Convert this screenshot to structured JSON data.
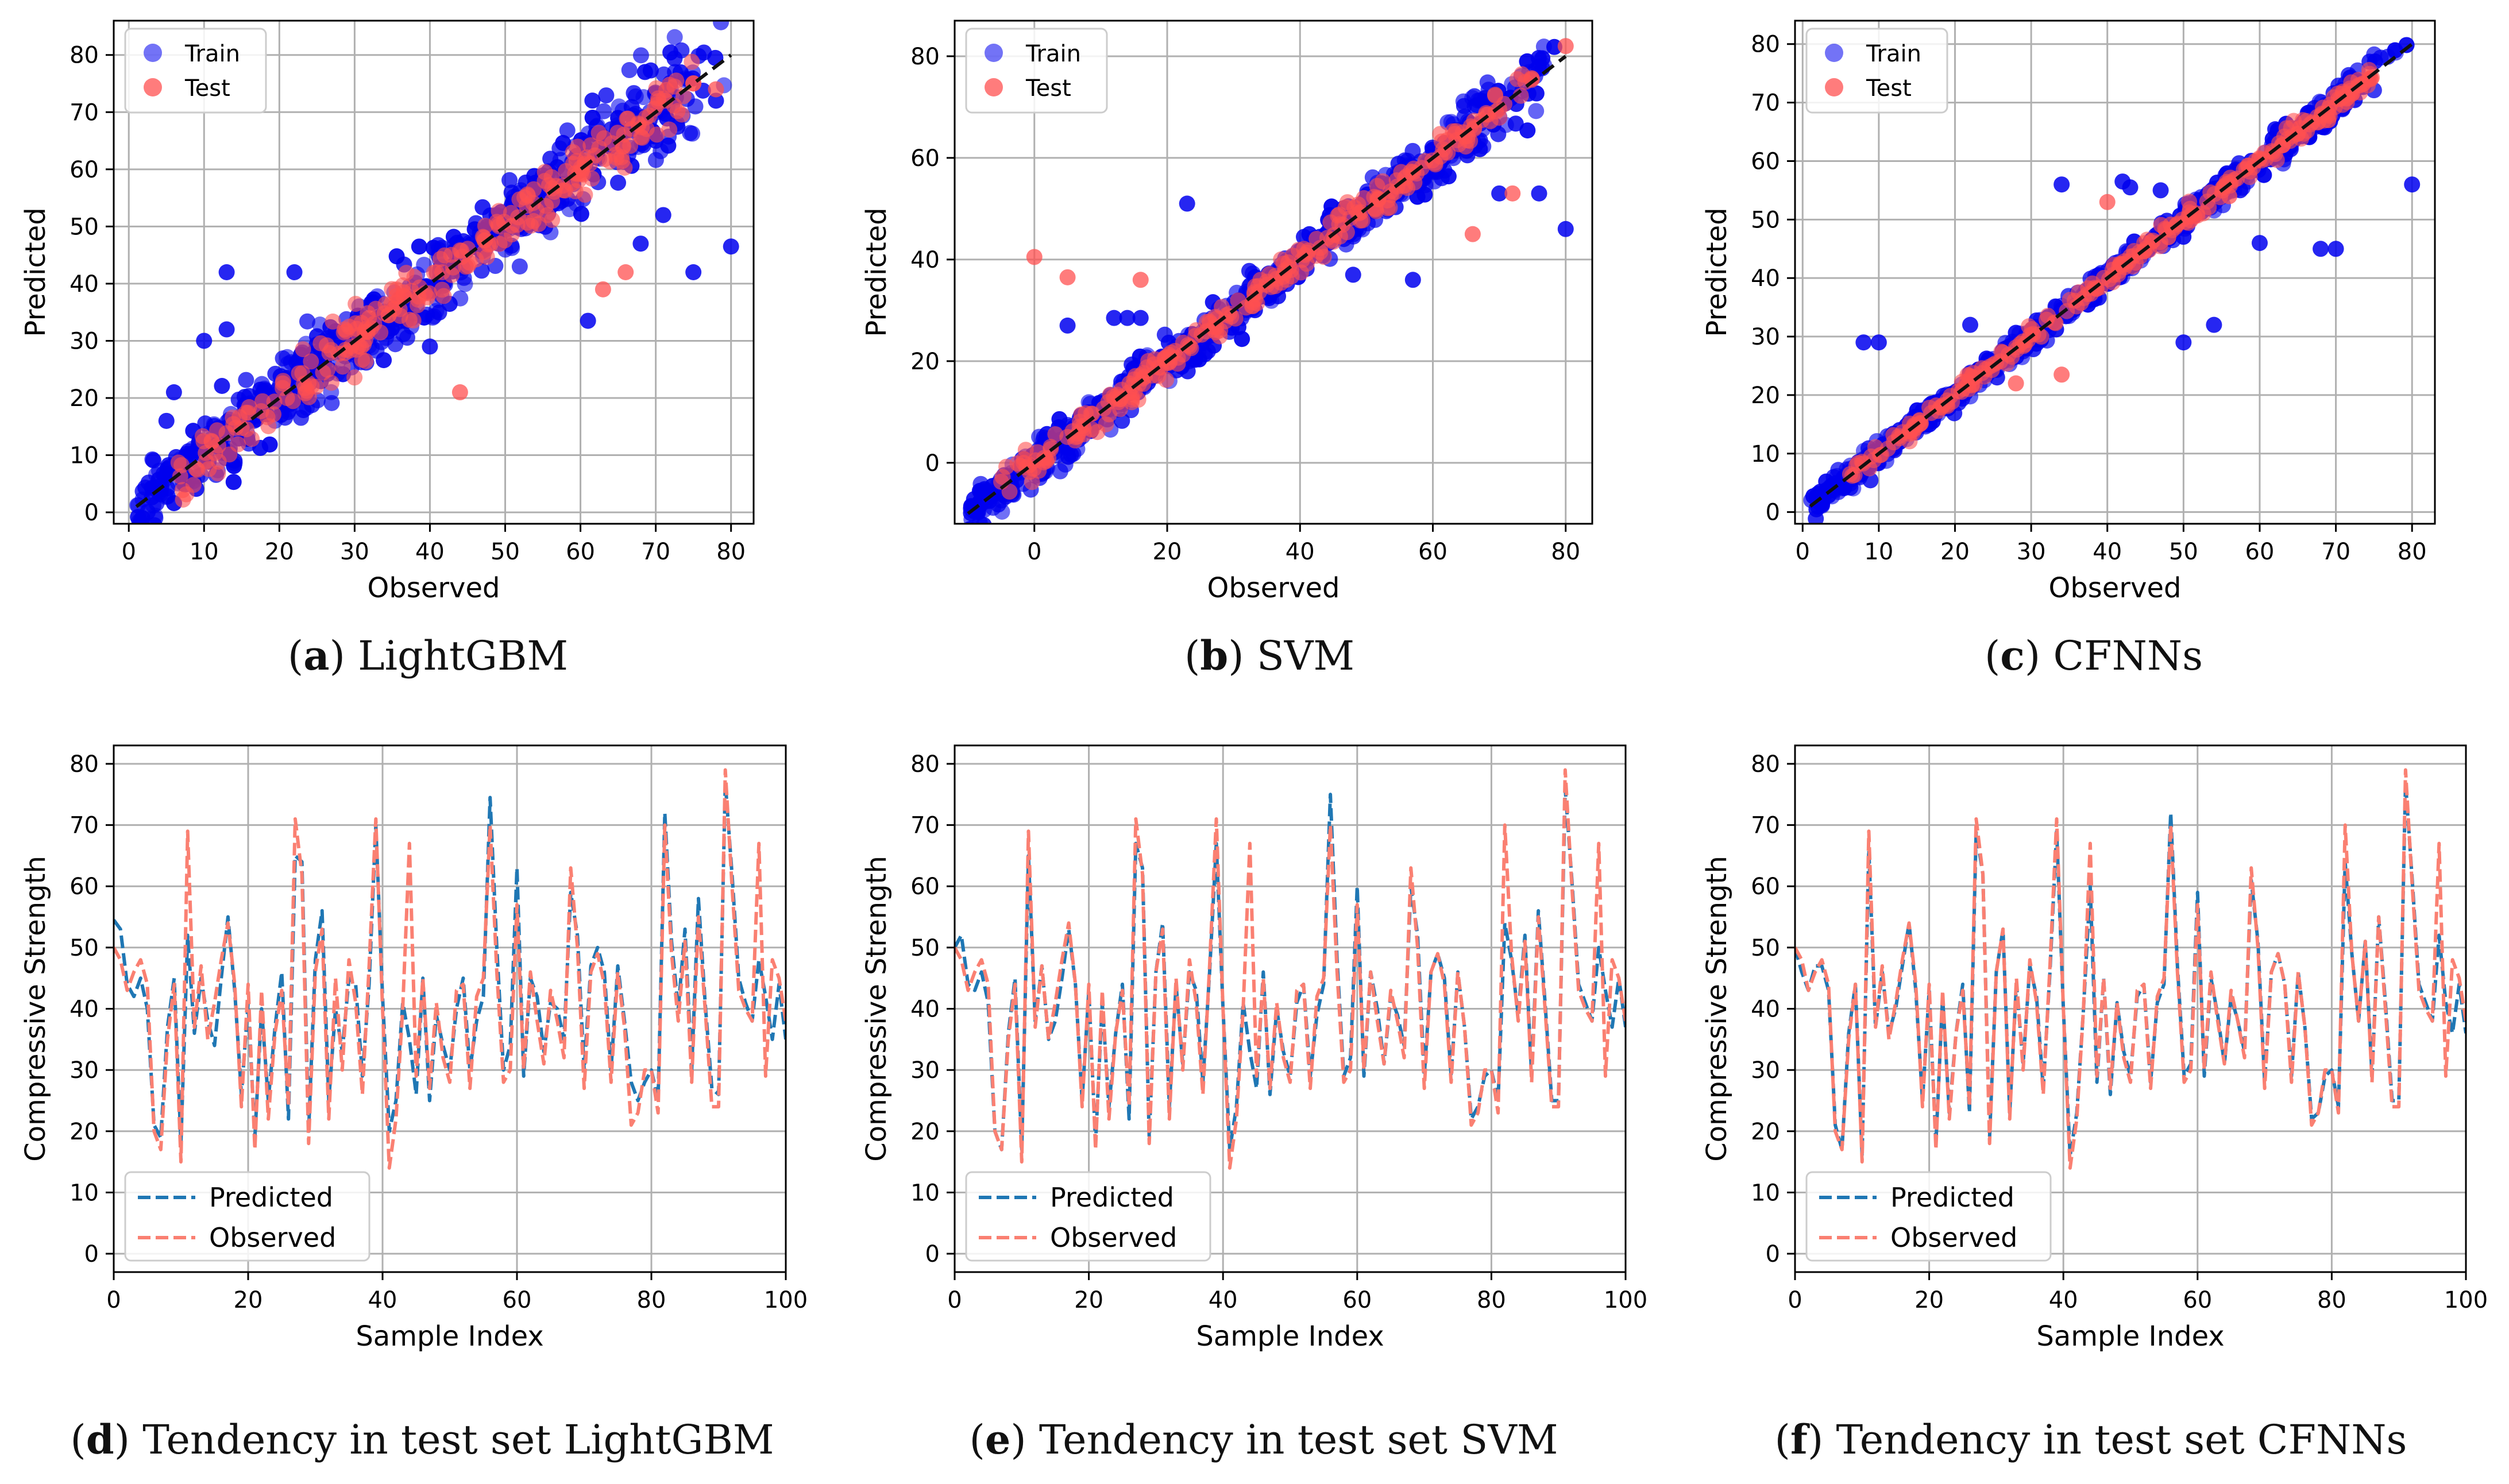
{
  "figure": {
    "captions": [
      {
        "letter": "a",
        "text": "LightGBM"
      },
      {
        "letter": "b",
        "text": "SVM"
      },
      {
        "letter": "c",
        "text": "CFNNs"
      },
      {
        "letter": "d",
        "text": "Tendency in test set LightGBM"
      },
      {
        "letter": "e",
        "text": "Tendency in test set SVM"
      },
      {
        "letter": "f",
        "text": "Tendency in test set CFNNs"
      }
    ]
  },
  "colors": {
    "train": "#0000ee",
    "test": "#ff5050",
    "diagonal": "#111111",
    "predicted_line": "#1f77b4",
    "observed_line": "#fa8072",
    "grid": "#b0b0b0"
  },
  "chart_data": [
    {
      "id": "a",
      "type": "scatter",
      "title": "",
      "xlabel": "Observed",
      "ylabel": "Predicted",
      "xlim": [
        -2,
        83
      ],
      "ylim": [
        -2,
        86
      ],
      "xticks": [
        0,
        10,
        20,
        30,
        40,
        50,
        60,
        70,
        80
      ],
      "yticks": [
        0,
        10,
        20,
        30,
        40,
        50,
        60,
        70,
        80
      ],
      "legend": {
        "position": "top-left",
        "entries": [
          "Train",
          "Test"
        ]
      },
      "diagonal": [
        [
          1,
          1
        ],
        [
          80,
          80
        ]
      ],
      "spread": 4.5,
      "outliers_train": [
        [
          80,
          46.5
        ],
        [
          78,
          72
        ],
        [
          75,
          42
        ],
        [
          71,
          52
        ],
        [
          68,
          47
        ],
        [
          61,
          33.5
        ],
        [
          70,
          65
        ],
        [
          5,
          16
        ],
        [
          6,
          21
        ],
        [
          10,
          30
        ],
        [
          13,
          32
        ],
        [
          13,
          42
        ],
        [
          22,
          42
        ],
        [
          40,
          29
        ]
      ],
      "outliers_test": [
        [
          44,
          21
        ],
        [
          66,
          42
        ],
        [
          63,
          39
        ],
        [
          75,
          75
        ],
        [
          78,
          74
        ]
      ]
    },
    {
      "id": "b",
      "type": "scatter",
      "title": "",
      "xlabel": "Observed",
      "ylabel": "Predicted",
      "xlim": [
        -12,
        84
      ],
      "ylim": [
        -12,
        87
      ],
      "xticks": [
        0,
        20,
        40,
        60,
        80
      ],
      "yticks": [
        0,
        20,
        40,
        60,
        80
      ],
      "legend": {
        "position": "top-left",
        "entries": [
          "Train",
          "Test"
        ]
      },
      "diagonal": [
        [
          -10,
          -10
        ],
        [
          80,
          80
        ]
      ],
      "spread": 3.0,
      "outliers_train": [
        [
          -9,
          -9.5
        ],
        [
          80,
          46
        ],
        [
          76,
          53
        ],
        [
          70,
          53
        ],
        [
          12,
          28.5
        ],
        [
          14,
          28.5
        ],
        [
          16,
          28.5
        ],
        [
          23,
          51
        ],
        [
          57,
          36
        ],
        [
          5,
          27
        ],
        [
          48,
          37
        ]
      ],
      "outliers_test": [
        [
          0,
          40.5
        ],
        [
          5,
          36.5
        ],
        [
          16,
          36
        ],
        [
          66,
          45
        ],
        [
          72,
          53
        ],
        [
          80,
          82
        ]
      ]
    },
    {
      "id": "c",
      "type": "scatter",
      "title": "",
      "xlabel": "Observed",
      "ylabel": "Predicted",
      "xlim": [
        -1,
        83
      ],
      "ylim": [
        -2,
        84
      ],
      "xticks": [
        0,
        10,
        20,
        30,
        40,
        50,
        60,
        70,
        80
      ],
      "yticks": [
        0,
        10,
        20,
        30,
        40,
        50,
        60,
        70,
        80
      ],
      "legend": {
        "position": "top-left",
        "entries": [
          "Train",
          "Test"
        ]
      },
      "diagonal": [
        [
          1,
          1
        ],
        [
          80,
          80
        ]
      ],
      "spread": 1.6,
      "outliers_train": [
        [
          8,
          29
        ],
        [
          10,
          29
        ],
        [
          22,
          32
        ],
        [
          34,
          56
        ],
        [
          42,
          56.5
        ],
        [
          43,
          55.5
        ],
        [
          47,
          55
        ],
        [
          80,
          56
        ],
        [
          68,
          45
        ],
        [
          70,
          45
        ],
        [
          54,
          32
        ],
        [
          50,
          29
        ],
        [
          60,
          46
        ]
      ],
      "outliers_test": [
        [
          28,
          22
        ],
        [
          34,
          23.5
        ],
        [
          40,
          53
        ],
        [
          48,
          47
        ],
        [
          56,
          54
        ],
        [
          69,
          67
        ]
      ]
    },
    {
      "id": "d",
      "type": "line",
      "title": "",
      "xlabel": "Sample Index",
      "ylabel": "Compressive Strength",
      "xlim": [
        0,
        100
      ],
      "ylim": [
        -3,
        83
      ],
      "xticks": [
        0,
        20,
        40,
        60,
        80,
        100
      ],
      "yticks": [
        0,
        10,
        20,
        30,
        40,
        50,
        60,
        70,
        80
      ],
      "legend": {
        "position": "bottom-left",
        "entries": [
          "Predicted",
          "Observed"
        ]
      },
      "series": [
        {
          "name": "Predicted",
          "values": [
            54.5,
            53,
            44,
            42,
            45,
            40,
            21,
            19,
            37,
            45,
            18,
            52,
            36,
            45,
            38,
            34,
            45,
            55,
            43,
            26,
            41,
            19,
            40,
            25,
            37,
            46,
            22,
            65,
            64,
            20,
            48,
            56,
            25,
            40,
            33,
            45,
            44,
            29,
            44,
            70,
            42,
            20,
            25,
            41,
            35,
            26,
            45,
            25,
            39,
            34,
            30,
            40,
            45,
            30,
            38,
            42,
            74.5,
            50,
            30,
            34,
            63,
            29,
            45,
            42,
            33,
            41,
            40,
            35,
            59,
            52,
            30,
            47,
            50,
            46,
            30,
            47,
            38,
            28,
            25,
            28,
            30,
            25,
            72,
            51,
            40,
            53,
            30,
            58,
            41,
            27,
            26,
            77,
            62,
            45,
            41,
            38,
            48,
            42,
            35,
            44,
            35
          ]
        },
        {
          "name": "Observed",
          "values": [
            50,
            48,
            43,
            46,
            48,
            44,
            20,
            17,
            35,
            44,
            15,
            69,
            37,
            47,
            35,
            41,
            48,
            54,
            44,
            24,
            44,
            17,
            43,
            22,
            36,
            43,
            24,
            71,
            62,
            18,
            46,
            53,
            22,
            45,
            30,
            48,
            41,
            26,
            47,
            71,
            40,
            14,
            22,
            40,
            67,
            29,
            45,
            27,
            41,
            32,
            28,
            43,
            44,
            27,
            42,
            45,
            70,
            46,
            28,
            30,
            57,
            30,
            46,
            38,
            31,
            43,
            38,
            32,
            63,
            50,
            27,
            46,
            49,
            44,
            28,
            46,
            37,
            21,
            23,
            30,
            30,
            23,
            70,
            49,
            38,
            51,
            28,
            55,
            40,
            24,
            24,
            79,
            60,
            43,
            40,
            38,
            67,
            29,
            48,
            45,
            38
          ]
        }
      ]
    },
    {
      "id": "e",
      "type": "line",
      "title": "",
      "xlabel": "Sample Index",
      "ylabel": "Compressive Strength",
      "xlim": [
        0,
        100
      ],
      "ylim": [
        -3,
        83
      ],
      "xticks": [
        0,
        20,
        40,
        60,
        80,
        100
      ],
      "yticks": [
        0,
        10,
        20,
        30,
        40,
        50,
        60,
        70,
        80
      ],
      "legend": {
        "position": "bottom-left",
        "entries": [
          "Predicted",
          "Observed"
        ]
      },
      "series": [
        {
          "name": "Predicted",
          "values": [
            50,
            52,
            44,
            43,
            46,
            41,
            20,
            17,
            36,
            45,
            17,
            65,
            38,
            47,
            35,
            38,
            45,
            53,
            44,
            25,
            43,
            18,
            41,
            24,
            36,
            44,
            22,
            67,
            63,
            19,
            46,
            54,
            24,
            44,
            31,
            46,
            43,
            28,
            46,
            67,
            40,
            17,
            24,
            41,
            33,
            27,
            46,
            26,
            40,
            33,
            29,
            41,
            44,
            29,
            39,
            44,
            75,
            48,
            29,
            32,
            60,
            29,
            46,
            40,
            31,
            42,
            39,
            34,
            60,
            52,
            29,
            46,
            49,
            45,
            29,
            46,
            37,
            22,
            24,
            29,
            30,
            25,
            54,
            48,
            39,
            52,
            29,
            56,
            41,
            25,
            25,
            76,
            61,
            44,
            41,
            38,
            50,
            43,
            37,
            45,
            37
          ]
        },
        {
          "name": "Observed",
          "values": [
            50,
            48,
            43,
            46,
            48,
            44,
            20,
            17,
            35,
            44,
            15,
            69,
            37,
            47,
            35,
            41,
            48,
            54,
            44,
            24,
            44,
            17,
            43,
            22,
            36,
            43,
            24,
            71,
            62,
            18,
            46,
            53,
            22,
            45,
            30,
            48,
            41,
            26,
            47,
            71,
            40,
            14,
            22,
            40,
            67,
            29,
            45,
            27,
            41,
            32,
            28,
            43,
            44,
            27,
            42,
            45,
            70,
            46,
            28,
            30,
            57,
            30,
            46,
            38,
            31,
            43,
            38,
            32,
            63,
            50,
            27,
            46,
            49,
            44,
            28,
            46,
            37,
            21,
            23,
            30,
            30,
            23,
            70,
            49,
            38,
            51,
            28,
            55,
            40,
            24,
            24,
            79,
            60,
            43,
            40,
            38,
            67,
            29,
            48,
            45,
            38
          ]
        }
      ]
    },
    {
      "id": "f",
      "type": "line",
      "title": "",
      "xlabel": "Sample Index",
      "ylabel": "Compressive Strength",
      "xlim": [
        0,
        100
      ],
      "ylim": [
        -3,
        83
      ],
      "xticks": [
        0,
        20,
        40,
        60,
        80,
        100
      ],
      "yticks": [
        0,
        10,
        20,
        30,
        40,
        50,
        60,
        70,
        80
      ],
      "legend": {
        "position": "bottom-left",
        "entries": [
          "Predicted",
          "Observed"
        ]
      },
      "series": [
        {
          "name": "Predicted",
          "values": [
            50,
            46,
            43,
            47,
            47,
            43,
            21,
            17,
            36,
            44,
            16,
            66,
            37,
            46,
            36,
            40,
            47,
            54,
            43,
            25,
            43,
            18,
            42,
            23,
            36,
            44,
            23,
            69,
            62,
            19,
            46,
            53,
            23,
            44,
            31,
            47,
            42,
            27,
            46,
            69,
            40,
            16,
            23,
            40,
            60,
            28,
            45,
            26,
            41,
            33,
            29,
            42,
            44,
            28,
            41,
            44,
            72,
            47,
            29,
            31,
            59,
            29,
            45,
            39,
            31,
            42,
            38,
            33,
            61,
            51,
            28,
            46,
            49,
            44,
            29,
            46,
            37,
            22,
            23,
            29,
            30,
            24,
            64,
            49,
            38,
            51,
            29,
            55,
            41,
            25,
            25,
            77,
            61,
            44,
            41,
            38,
            52,
            41,
            36,
            44,
            36
          ]
        },
        {
          "name": "Observed",
          "values": [
            50,
            48,
            43,
            46,
            48,
            44,
            20,
            17,
            35,
            44,
            15,
            69,
            37,
            47,
            35,
            41,
            48,
            54,
            44,
            24,
            44,
            17,
            43,
            22,
            36,
            43,
            24,
            71,
            62,
            18,
            46,
            53,
            22,
            45,
            30,
            48,
            41,
            26,
            47,
            71,
            40,
            14,
            22,
            40,
            67,
            29,
            45,
            27,
            41,
            32,
            28,
            43,
            44,
            27,
            42,
            45,
            70,
            46,
            28,
            30,
            57,
            30,
            46,
            38,
            31,
            43,
            38,
            32,
            63,
            50,
            27,
            46,
            49,
            44,
            28,
            46,
            37,
            21,
            23,
            30,
            30,
            23,
            70,
            49,
            38,
            51,
            28,
            55,
            40,
            24,
            24,
            79,
            60,
            43,
            40,
            38,
            67,
            29,
            48,
            45,
            38
          ]
        }
      ]
    }
  ]
}
